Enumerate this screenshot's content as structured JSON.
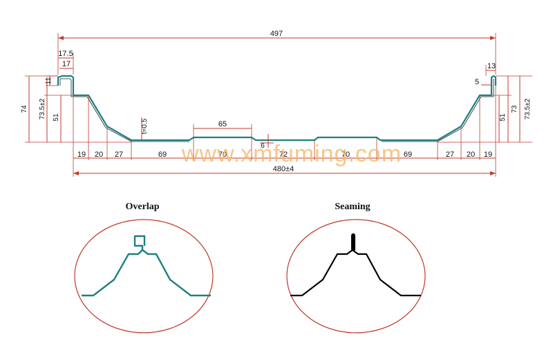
{
  "dimensions": {
    "overall_top": "497",
    "left_lip_outer": "17.5",
    "left_lip_inner": "17",
    "left_hook": "11",
    "right_lip": "13",
    "right_hook_gap": "5",
    "left_total_height": "74",
    "left_height_tol": "73.5±2",
    "left_rib_height": "51",
    "right_total_height": "73",
    "right_height_tol": "73.5±2",
    "right_rib_height": "51",
    "thickness": "t=0.5",
    "flat_width": "65",
    "center_small": "6",
    "bottom_segments_left": [
      "19",
      "20",
      "27",
      "69",
      "70",
      "72"
    ],
    "bottom_segments_right": [
      "70",
      "69",
      "27",
      "20",
      "19"
    ],
    "overall_bottom": "480±4"
  },
  "watermark": "www.xmfuming.com",
  "details": {
    "overlap_caption": "Overlap",
    "seaming_caption": "Seaming"
  },
  "colors": {
    "dimension": "#c0392b",
    "profile": "#1e7f80",
    "seam": "#000000",
    "watermark": "#f5b461"
  }
}
